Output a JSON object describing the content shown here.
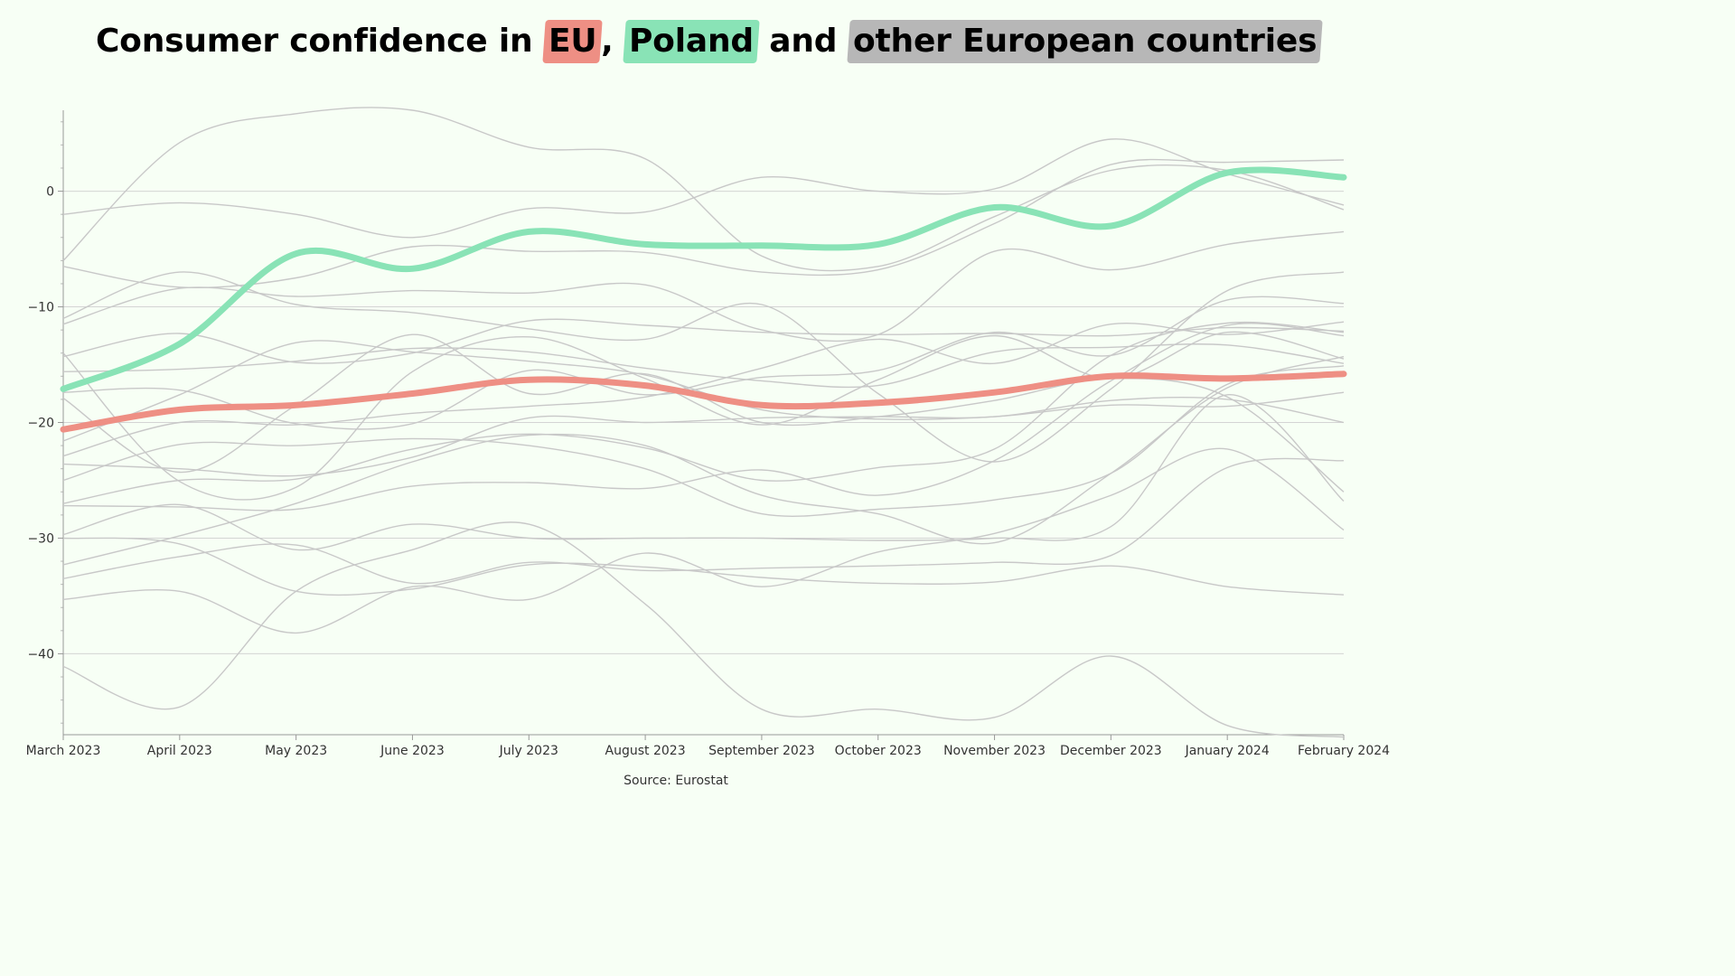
{
  "chart_data": {
    "type": "line",
    "title": {
      "prefix": "Consumer confidence in ",
      "eu": "EU",
      "sep": ",",
      "poland": "Poland",
      "and": "and",
      "others": "other European countries"
    },
    "source": "Source: Eurostat",
    "xlabel": "",
    "ylabel": "",
    "x": [
      "March 2023",
      "April 2023",
      "May 2023",
      "June 2023",
      "July 2023",
      "August 2023",
      "September 2023",
      "October 2023",
      "November 2023",
      "December 2023",
      "January 2024",
      "February 2024"
    ],
    "y_ticks": [
      0,
      -10,
      -20,
      -30,
      -40
    ],
    "y_tick_labels": [
      "0",
      "−10",
      "−20",
      "−30",
      "−40"
    ],
    "ylim": [
      -47,
      7
    ],
    "grid": true,
    "colors": {
      "eu": "#ee8f84",
      "poland": "#89e3b6",
      "others": "#c8c8c8",
      "others_highlight": "#b7b7b7",
      "background": "#f7fff5",
      "grid": "#d4d4d4"
    },
    "series": [
      {
        "name": "EU",
        "role": "eu",
        "values": [
          -20.6,
          -18.9,
          -18.5,
          -17.5,
          -16.3,
          -16.8,
          -18.5,
          -18.3,
          -17.4,
          -16.0,
          -16.2,
          -15.8
        ]
      },
      {
        "name": "Poland",
        "role": "poland",
        "values": [
          -17.1,
          -13.2,
          -5.4,
          -6.7,
          -3.5,
          -4.6,
          -4.7,
          -4.6,
          -1.4,
          -3.0,
          1.6,
          1.2
        ]
      },
      {
        "role": "other",
        "values": [
          -6.0,
          4.2,
          6.7,
          7.0,
          3.8,
          2.8,
          -5.6,
          -6.5,
          -2.2,
          1.8,
          1.8,
          -1.6
        ]
      },
      {
        "role": "other",
        "values": [
          -2.0,
          -1.0,
          -2.0,
          -4.0,
          -1.5,
          -1.8,
          1.2,
          0.0,
          0.2,
          4.5,
          1.5,
          -1.2
        ]
      },
      {
        "role": "other",
        "values": [
          -11.5,
          -8.4,
          -9.1,
          -8.6,
          -8.8,
          -8.1,
          -12.0,
          -12.4,
          -5.2,
          -6.8,
          -4.6,
          -3.5
        ]
      },
      {
        "role": "other",
        "values": [
          -11.0,
          -7.0,
          -9.8,
          -10.5,
          -11.9,
          -12.8,
          -9.8,
          -17.5,
          -23.4,
          -17.1,
          -8.6,
          -7.0
        ]
      },
      {
        "role": "other",
        "values": [
          -6.5,
          -8.3,
          -7.5,
          -4.8,
          -5.2,
          -5.3,
          -7.0,
          -6.8,
          -2.8,
          2.3,
          2.5,
          2.7
        ]
      },
      {
        "role": "other",
        "values": [
          -14.3,
          -12.3,
          -14.8,
          -14.0,
          -11.2,
          -11.6,
          -12.2,
          -12.4,
          -12.3,
          -12.5,
          -11.8,
          -12.1
        ]
      },
      {
        "role": "other",
        "values": [
          -15.6,
          -15.4,
          -14.7,
          -13.6,
          -13.9,
          -15.3,
          -16.4,
          -16.8,
          -13.9,
          -13.5,
          -13.3,
          -14.9
        ]
      },
      {
        "role": "other",
        "values": [
          -17.4,
          -17.2,
          -20.1,
          -20.1,
          -15.5,
          -17.6,
          -16.1,
          -15.5,
          -12.2,
          -14.2,
          -9.4,
          -9.7
        ]
      },
      {
        "role": "other",
        "values": [
          -17.9,
          -24.3,
          -18.5,
          -12.4,
          -17.5,
          -15.8,
          -20.0,
          -19.5,
          -18.1,
          -16.2,
          -17.8,
          -26.0
        ]
      },
      {
        "role": "other",
        "values": [
          -21.6,
          -17.6,
          -13.1,
          -13.9,
          -14.7,
          -15.9,
          -18.9,
          -19.7,
          -19.5,
          -18.5,
          -18.6,
          -17.4
        ]
      },
      {
        "role": "other",
        "values": [
          -22.9,
          -20.0,
          -20.2,
          -19.2,
          -18.6,
          -17.8,
          -15.3,
          -12.8,
          -14.9,
          -11.5,
          -12.4,
          -11.3
        ]
      },
      {
        "role": "other",
        "values": [
          -14.0,
          -25.1,
          -25.6,
          -15.6,
          -12.6,
          -16.2,
          -20.2,
          -16.3,
          -12.5,
          -16.2,
          -12.2,
          -14.5
        ]
      },
      {
        "role": "other",
        "values": [
          -23.6,
          -24.0,
          -24.6,
          -23.0,
          -19.6,
          -20.0,
          -19.6,
          -19.5,
          -19.5,
          -18.1,
          -18.0,
          -20.0
        ]
      },
      {
        "role": "other",
        "values": [
          -27.0,
          -25.0,
          -24.9,
          -22.3,
          -21.0,
          -22.2,
          -25.0,
          -23.9,
          -22.3,
          -14.2,
          -11.4,
          -12.2
        ]
      },
      {
        "role": "other",
        "values": [
          -27.2,
          -27.3,
          -27.5,
          -25.5,
          -25.2,
          -25.7,
          -24.1,
          -26.3,
          -23.3,
          -16.4,
          -11.6,
          -12.5
        ]
      },
      {
        "role": "other",
        "values": [
          -29.7,
          -27.1,
          -31.0,
          -28.8,
          -30.0,
          -30.0,
          -30.0,
          -30.2,
          -30.0,
          -29.0,
          -17.6,
          -26.8
        ]
      },
      {
        "role": "other",
        "values": [
          -25.0,
          -21.9,
          -22.0,
          -21.4,
          -22.0,
          -24.0,
          -27.9,
          -27.5,
          -26.7,
          -24.4,
          -16.7,
          -15.1
        ]
      },
      {
        "role": "other",
        "values": [
          -32.3,
          -29.8,
          -27.0,
          -23.4,
          -21.1,
          -22.0,
          -26.3,
          -27.9,
          -30.4,
          -24.4,
          -17.0,
          -14.3
        ]
      },
      {
        "role": "other",
        "values": [
          -33.5,
          -31.6,
          -30.6,
          -33.9,
          -32.1,
          -32.8,
          -32.6,
          -32.4,
          -32.1,
          -31.5,
          -23.9,
          -23.3
        ]
      },
      {
        "role": "other",
        "values": [
          -35.3,
          -34.6,
          -38.2,
          -34.2,
          -35.3,
          -31.3,
          -34.2,
          -31.2,
          -29.6,
          -26.3,
          -22.3,
          -29.3
        ]
      },
      {
        "role": "other",
        "values": [
          -41.1,
          -44.6,
          -34.6,
          -31.0,
          -28.8,
          -35.7,
          -44.8,
          -44.8,
          -45.5,
          -40.2,
          -46.2,
          -47.2
        ]
      },
      {
        "role": "other",
        "values": [
          -30.0,
          -30.5,
          -34.6,
          -34.4,
          -32.3,
          -32.5,
          -33.4,
          -33.9,
          -33.8,
          -32.4,
          -34.2,
          -34.9
        ]
      }
    ]
  }
}
